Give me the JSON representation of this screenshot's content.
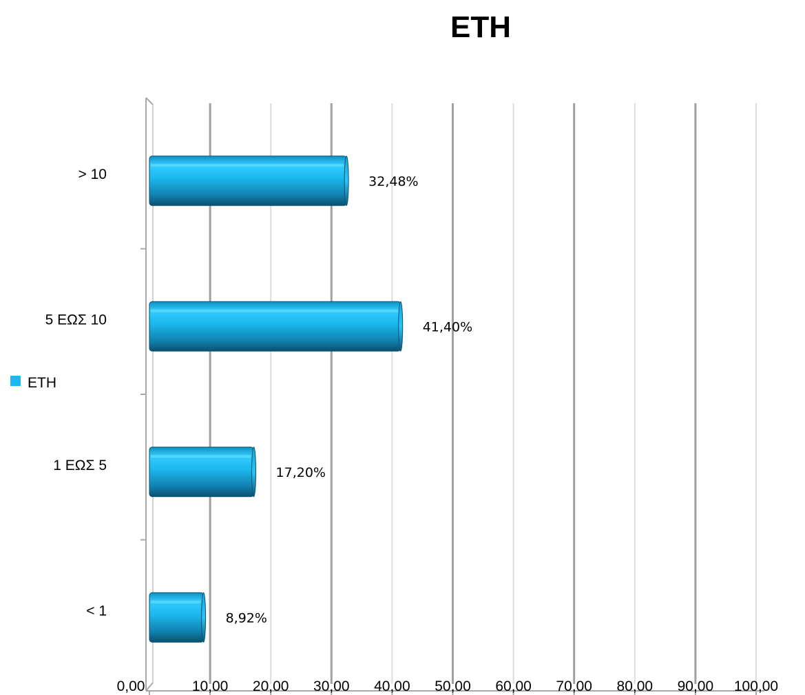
{
  "chart_data": {
    "type": "bar",
    "orientation": "horizontal",
    "title": "ΕΤΗ",
    "categories": [
      "< 1",
      "1 ΕΩΣ 5",
      "5 ΕΩΣ 10",
      "> 10"
    ],
    "series": [
      {
        "name": "ΕΤΗ",
        "values": [
          8.92,
          17.2,
          41.4,
          32.48
        ],
        "data_labels": [
          "8,92%",
          "17,20%",
          "41,40%",
          "32,48%"
        ],
        "color": "#1ab8ee"
      }
    ],
    "xlim": [
      0,
      100
    ],
    "x_ticks": [
      0,
      10,
      20,
      30,
      40,
      50,
      60,
      70,
      80,
      90,
      100
    ],
    "x_tick_labels": [
      "0,00",
      "10,00",
      "20,00",
      "30,00",
      "40,00",
      "50,00",
      "60,00",
      "70,00",
      "80,00",
      "90,00",
      "100,00"
    ],
    "xlabel": "",
    "ylabel": "",
    "grid": true,
    "legend": {
      "position": "left",
      "entries": [
        "ΕΤΗ"
      ]
    }
  },
  "colors": {
    "bar_light": "#33ccff",
    "bar_mid": "#1ab8ee",
    "bar_dark": "#0a5f80",
    "grid_major": "#a0a0a0",
    "grid_minor": "#dcdcdc",
    "axis": "#a8a8a8"
  }
}
